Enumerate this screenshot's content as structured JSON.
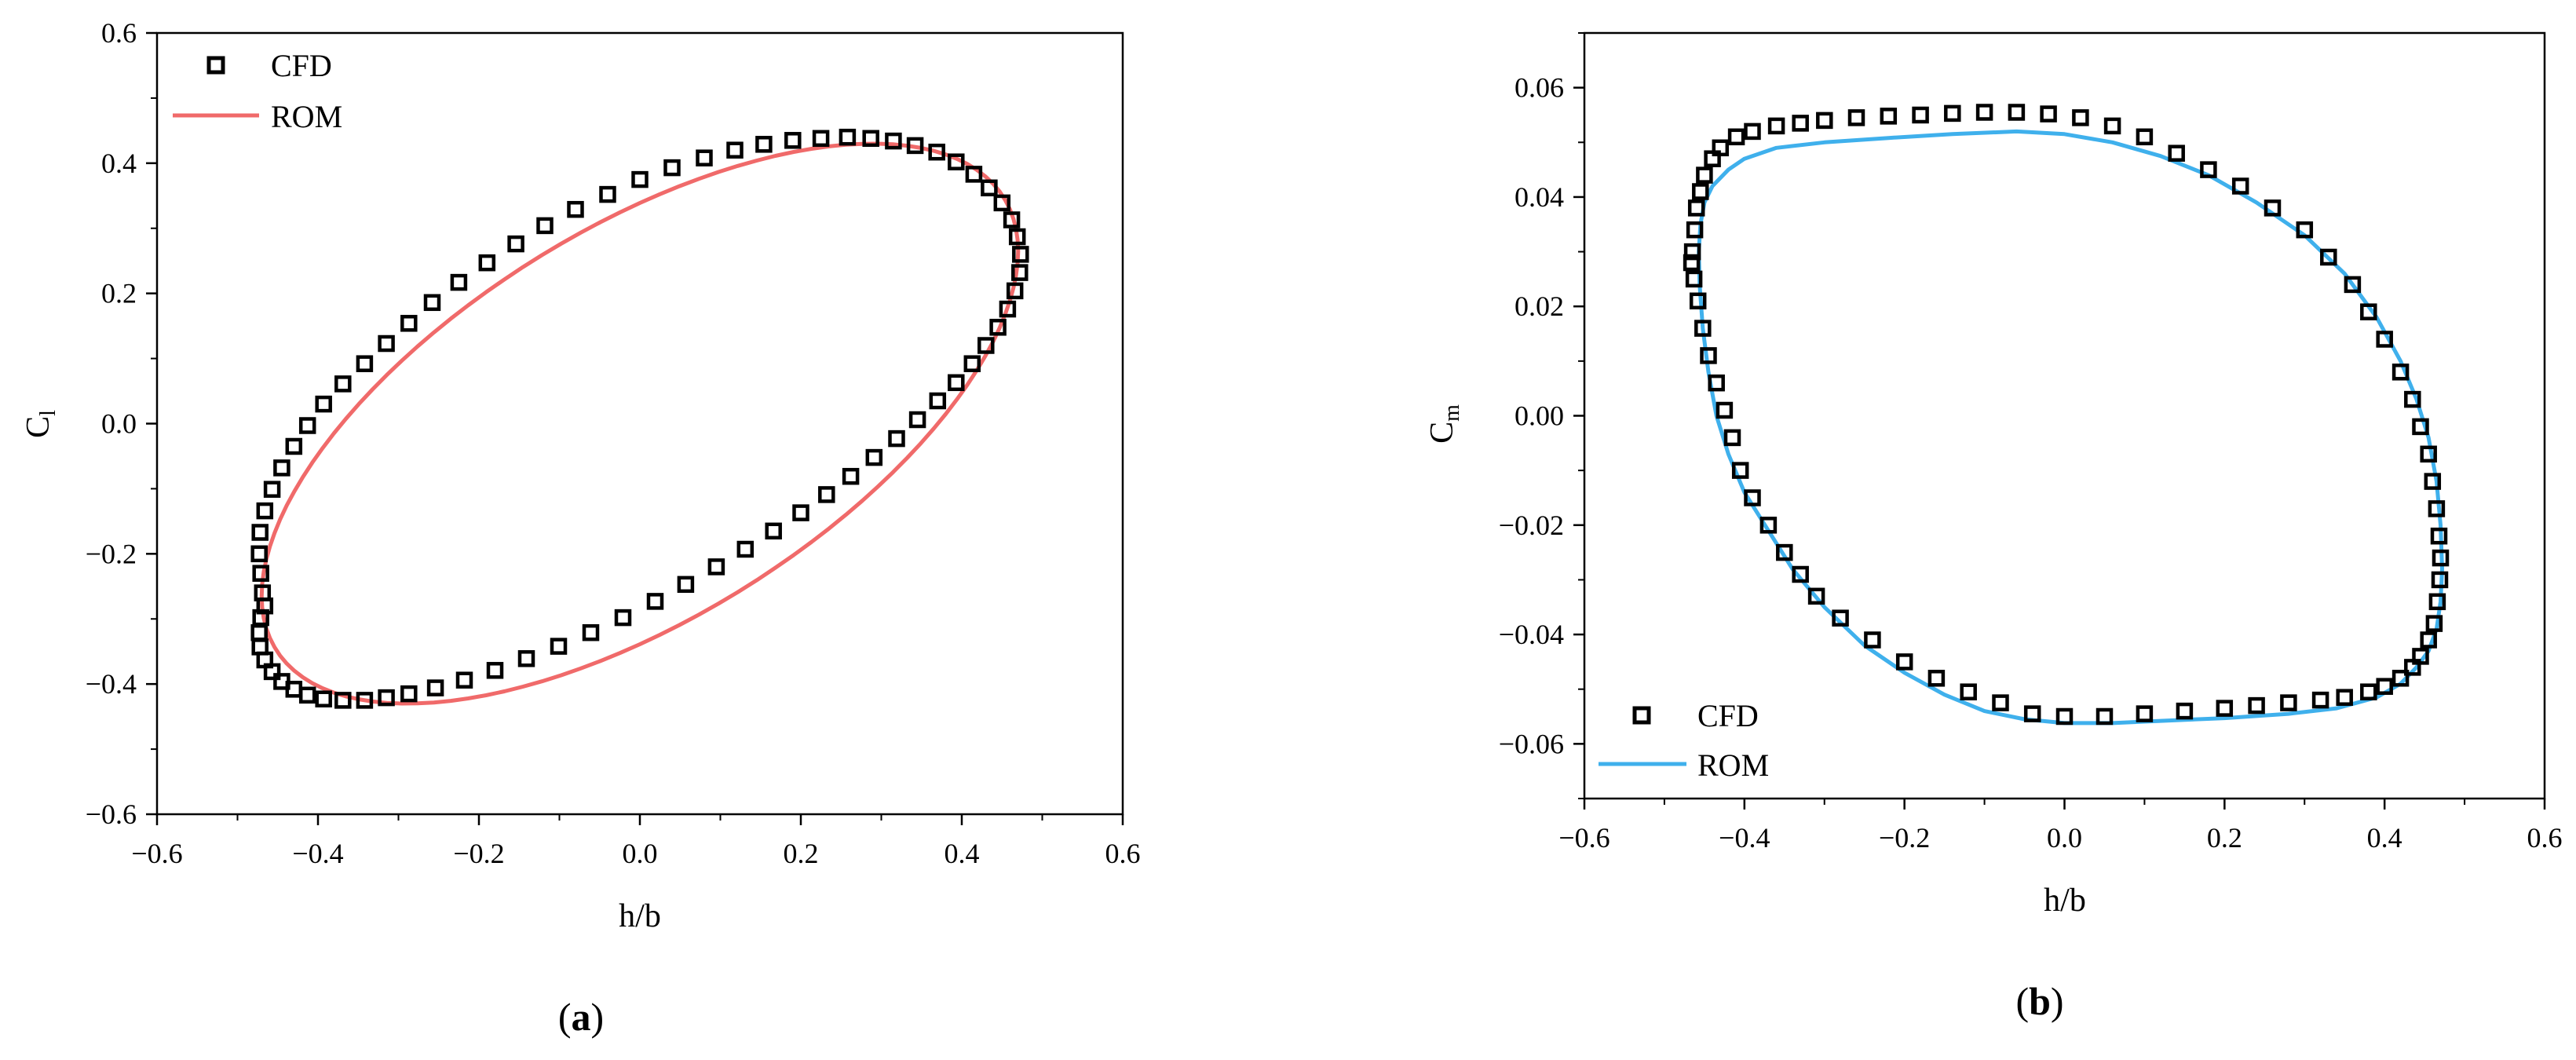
{
  "chart_data": [
    {
      "id": "a",
      "type": "scatter",
      "panel_label": "a",
      "xlabel": "h/b",
      "ylabel_main": "C",
      "ylabel_sub": "l",
      "xlim": [
        -0.6,
        0.6
      ],
      "ylim": [
        -0.6,
        0.6
      ],
      "xticks": [
        -0.6,
        -0.4,
        -0.2,
        0.0,
        0.2,
        0.4,
        0.6
      ],
      "yticks": [
        -0.6,
        -0.4,
        -0.2,
        0.0,
        0.2,
        0.4,
        0.6
      ],
      "xtick_labels": [
        "−0.6",
        "−0.4",
        "−0.2",
        "0.0",
        "0.2",
        "0.4",
        "0.6"
      ],
      "ytick_labels": [
        "−0.6",
        "−0.4",
        "−0.2",
        "0.0",
        "0.2",
        "0.4",
        "0.6"
      ],
      "legend_position": "top-left",
      "series": [
        {
          "name": "CFD",
          "kind": "markers",
          "color": "#000000",
          "points": [
            [
              0.473,
              0.26
            ],
            [
              0.472,
              0.232
            ],
            [
              0.469,
              0.287
            ],
            [
              0.466,
              0.204
            ],
            [
              0.462,
              0.313
            ],
            [
              0.457,
              0.176
            ],
            [
              0.45,
              0.339
            ],
            [
              0.445,
              0.148
            ],
            [
              0.434,
              0.362
            ],
            [
              0.43,
              0.12
            ],
            [
              0.415,
              0.383
            ],
            [
              0.413,
              0.092
            ],
            [
              0.393,
              0.402
            ],
            [
              0.393,
              0.063
            ],
            [
              0.37,
              0.035
            ],
            [
              0.369,
              0.417
            ],
            [
              0.345,
              0.006
            ],
            [
              0.342,
              0.427
            ],
            [
              0.319,
              -0.023
            ],
            [
              0.315,
              0.434
            ],
            [
              0.291,
              -0.052
            ],
            [
              0.287,
              0.438
            ],
            [
              0.262,
              -0.081
            ],
            [
              0.258,
              0.44
            ],
            [
              0.232,
              -0.109
            ],
            [
              0.225,
              0.438
            ],
            [
              0.2,
              -0.137
            ],
            [
              0.19,
              0.435
            ],
            [
              0.166,
              -0.165
            ],
            [
              0.154,
              0.429
            ],
            [
              0.131,
              -0.193
            ],
            [
              0.118,
              0.42
            ],
            [
              0.095,
              -0.22
            ],
            [
              0.08,
              0.408
            ],
            [
              0.057,
              -0.247
            ],
            [
              0.04,
              0.393
            ],
            [
              0.019,
              -0.273
            ],
            [
              0.0,
              0.375
            ],
            [
              -0.021,
              -0.298
            ],
            [
              -0.04,
              0.352
            ],
            [
              -0.061,
              -0.321
            ],
            [
              -0.08,
              0.329
            ],
            [
              -0.101,
              -0.342
            ],
            [
              -0.118,
              0.304
            ],
            [
              -0.141,
              -0.361
            ],
            [
              -0.154,
              0.276
            ],
            [
              -0.18,
              -0.379
            ],
            [
              -0.19,
              0.247
            ],
            [
              -0.218,
              -0.394
            ],
            [
              -0.225,
              0.217
            ],
            [
              -0.254,
              -0.406
            ],
            [
              -0.258,
              0.186
            ],
            [
              -0.287,
              -0.415
            ],
            [
              -0.287,
              0.154
            ],
            [
              -0.315,
              -0.421
            ],
            [
              -0.315,
              0.123
            ],
            [
              -0.342,
              -0.425
            ],
            [
              -0.342,
              0.092
            ],
            [
              -0.369,
              -0.425
            ],
            [
              -0.369,
              0.061
            ],
            [
              -0.393,
              -0.423
            ],
            [
              -0.393,
              0.03
            ],
            [
              -0.413,
              -0.417
            ],
            [
              -0.413,
              -0.003
            ],
            [
              -0.43,
              -0.408
            ],
            [
              -0.43,
              -0.035
            ],
            [
              -0.445,
              -0.396
            ],
            [
              -0.445,
              -0.068
            ],
            [
              -0.457,
              -0.381
            ],
            [
              -0.457,
              -0.101
            ],
            [
              -0.466,
              -0.363
            ],
            [
              -0.466,
              -0.134
            ],
            [
              -0.472,
              -0.343
            ],
            [
              -0.472,
              -0.167
            ],
            [
              -0.473,
              -0.321
            ],
            [
              -0.473,
              -0.2
            ],
            [
              -0.471,
              -0.298
            ],
            [
              -0.471,
              -0.23
            ],
            [
              -0.469,
              -0.26
            ],
            [
              -0.466,
              -0.28
            ]
          ]
        },
        {
          "name": "ROM",
          "kind": "line",
          "color": "#f06a6a",
          "ellipse": {
            "amp_x": 0.47,
            "amp_y": 0.43,
            "phase_deg": 52
          }
        }
      ]
    },
    {
      "id": "b",
      "type": "scatter",
      "panel_label": "b",
      "xlabel": "h/b",
      "ylabel_main": "C",
      "ylabel_sub": "m",
      "xlim": [
        -0.6,
        0.6
      ],
      "ylim": [
        -0.07,
        0.07
      ],
      "xticks": [
        -0.6,
        -0.4,
        -0.2,
        0.0,
        0.2,
        0.4,
        0.6
      ],
      "yticks": [
        -0.06,
        -0.04,
        -0.02,
        0.0,
        0.02,
        0.04,
        0.06
      ],
      "xtick_labels": [
        "−0.6",
        "−0.4",
        "−0.2",
        "0.0",
        "0.2",
        "0.4",
        "0.6"
      ],
      "ytick_labels": [
        "−0.06",
        "−0.04",
        "−0.02",
        "0.00",
        "0.02",
        "0.04",
        "0.06"
      ],
      "legend_position": "bottom-left",
      "series": [
        {
          "name": "CFD",
          "kind": "markers",
          "color": "#000000",
          "points": [
            [
              -0.465,
              0.03
            ],
            [
              -0.462,
              0.034
            ],
            [
              -0.46,
              0.038
            ],
            [
              -0.455,
              0.041
            ],
            [
              -0.45,
              0.044
            ],
            [
              -0.44,
              0.047
            ],
            [
              -0.43,
              0.049
            ],
            [
              -0.41,
              0.051
            ],
            [
              -0.39,
              0.052
            ],
            [
              -0.36,
              0.053
            ],
            [
              -0.33,
              0.0535
            ],
            [
              -0.3,
              0.054
            ],
            [
              -0.26,
              0.0545
            ],
            [
              -0.22,
              0.0548
            ],
            [
              -0.18,
              0.055
            ],
            [
              -0.14,
              0.0553
            ],
            [
              -0.1,
              0.0555
            ],
            [
              -0.06,
              0.0555
            ],
            [
              -0.02,
              0.0552
            ],
            [
              0.02,
              0.0545
            ],
            [
              0.06,
              0.053
            ],
            [
              0.1,
              0.051
            ],
            [
              0.14,
              0.048
            ],
            [
              0.18,
              0.045
            ],
            [
              0.22,
              0.042
            ],
            [
              0.26,
              0.038
            ],
            [
              0.3,
              0.034
            ],
            [
              0.33,
              0.029
            ],
            [
              0.36,
              0.024
            ],
            [
              0.38,
              0.019
            ],
            [
              0.4,
              0.014
            ],
            [
              0.42,
              0.008
            ],
            [
              0.435,
              0.003
            ],
            [
              0.445,
              -0.002
            ],
            [
              0.455,
              -0.007
            ],
            [
              0.46,
              -0.012
            ],
            [
              0.465,
              -0.017
            ],
            [
              0.468,
              -0.022
            ],
            [
              0.47,
              -0.026
            ],
            [
              0.469,
              -0.03
            ],
            [
              0.466,
              -0.034
            ],
            [
              0.462,
              -0.038
            ],
            [
              0.455,
              -0.041
            ],
            [
              0.445,
              -0.044
            ],
            [
              0.435,
              -0.046
            ],
            [
              0.42,
              -0.048
            ],
            [
              0.4,
              -0.0495
            ],
            [
              0.38,
              -0.0505
            ],
            [
              0.35,
              -0.0515
            ],
            [
              0.32,
              -0.052
            ],
            [
              0.28,
              -0.0525
            ],
            [
              0.24,
              -0.053
            ],
            [
              0.2,
              -0.0535
            ],
            [
              0.15,
              -0.054
            ],
            [
              0.1,
              -0.0545
            ],
            [
              0.05,
              -0.055
            ],
            [
              0.0,
              -0.055
            ],
            [
              -0.04,
              -0.0545
            ],
            [
              -0.08,
              -0.0525
            ],
            [
              -0.12,
              -0.0505
            ],
            [
              -0.16,
              -0.048
            ],
            [
              -0.2,
              -0.045
            ],
            [
              -0.24,
              -0.041
            ],
            [
              -0.28,
              -0.037
            ],
            [
              -0.31,
              -0.033
            ],
            [
              -0.33,
              -0.029
            ],
            [
              -0.35,
              -0.025
            ],
            [
              -0.37,
              -0.02
            ],
            [
              -0.39,
              -0.015
            ],
            [
              -0.405,
              -0.01
            ],
            [
              -0.415,
              -0.004
            ],
            [
              -0.425,
              0.001
            ],
            [
              -0.435,
              0.006
            ],
            [
              -0.445,
              0.011
            ],
            [
              -0.452,
              0.016
            ],
            [
              -0.458,
              0.021
            ],
            [
              -0.463,
              0.025
            ],
            [
              -0.466,
              0.028
            ]
          ]
        },
        {
          "name": "ROM",
          "kind": "line",
          "color": "#3fb0ec",
          "points": [
            [
              -0.455,
              0.035
            ],
            [
              -0.45,
              0.039
            ],
            [
              -0.44,
              0.042
            ],
            [
              -0.42,
              0.045
            ],
            [
              -0.4,
              0.047
            ],
            [
              -0.36,
              0.049
            ],
            [
              -0.3,
              0.05
            ],
            [
              -0.22,
              0.0508
            ],
            [
              -0.14,
              0.0515
            ],
            [
              -0.06,
              0.052
            ],
            [
              0.0,
              0.0515
            ],
            [
              0.06,
              0.05
            ],
            [
              0.12,
              0.0475
            ],
            [
              0.18,
              0.044
            ],
            [
              0.24,
              0.039
            ],
            [
              0.3,
              0.033
            ],
            [
              0.35,
              0.026
            ],
            [
              0.39,
              0.018
            ],
            [
              0.42,
              0.01
            ],
            [
              0.44,
              0.003
            ],
            [
              0.455,
              -0.004
            ],
            [
              0.465,
              -0.012
            ],
            [
              0.47,
              -0.02
            ],
            [
              0.472,
              -0.028
            ],
            [
              0.47,
              -0.034
            ],
            [
              0.465,
              -0.039
            ],
            [
              0.455,
              -0.043
            ],
            [
              0.44,
              -0.046
            ],
            [
              0.42,
              -0.049
            ],
            [
              0.39,
              -0.0515
            ],
            [
              0.34,
              -0.0535
            ],
            [
              0.28,
              -0.0545
            ],
            [
              0.2,
              -0.0553
            ],
            [
              0.12,
              -0.0558
            ],
            [
              0.06,
              -0.0562
            ],
            [
              0.0,
              -0.0562
            ],
            [
              -0.05,
              -0.0555
            ],
            [
              -0.1,
              -0.054
            ],
            [
              -0.15,
              -0.051
            ],
            [
              -0.2,
              -0.047
            ],
            [
              -0.25,
              -0.042
            ],
            [
              -0.3,
              -0.035
            ],
            [
              -0.34,
              -0.028
            ],
            [
              -0.37,
              -0.021
            ],
            [
              -0.4,
              -0.014
            ],
            [
              -0.42,
              -0.007
            ],
            [
              -0.435,
              0.0
            ],
            [
              -0.445,
              0.008
            ],
            [
              -0.452,
              0.016
            ],
            [
              -0.456,
              0.024
            ],
            [
              -0.457,
              0.03
            ],
            [
              -0.455,
              0.035
            ]
          ]
        }
      ]
    }
  ]
}
